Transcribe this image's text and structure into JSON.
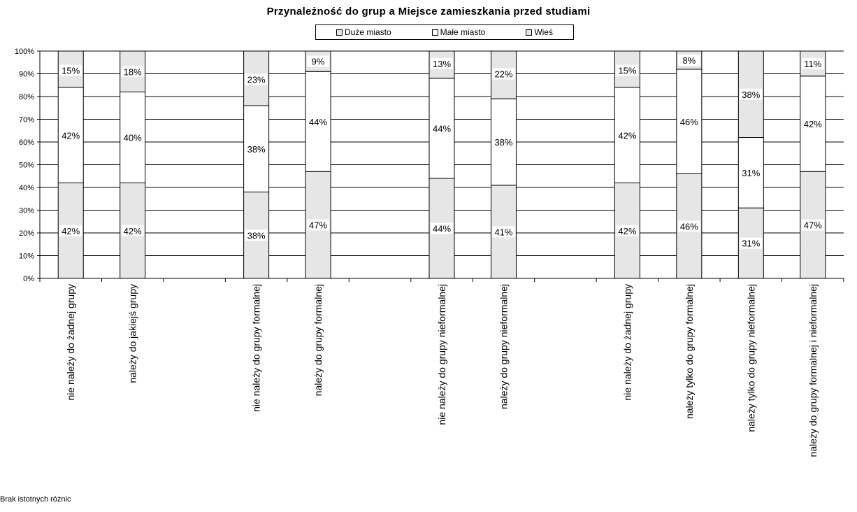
{
  "chart_data": {
    "type": "bar",
    "stacked": true,
    "percent": true,
    "title": "Przynależność do grup a Miejsce zamieszkania przed studiami",
    "legend_position": "top",
    "grid": true,
    "ylim": [
      0,
      100
    ],
    "yticks": [
      "0%",
      "10%",
      "20%",
      "30%",
      "40%",
      "50%",
      "60%",
      "70%",
      "80%",
      "90%",
      "100%"
    ],
    "slots": [
      0,
      1,
      3,
      4,
      6,
      7,
      9,
      10,
      11,
      12
    ],
    "slot_count": 13,
    "categories": [
      "nie należy do żadnej grupy",
      "należy do jakiejś grupy",
      "nie należy do grupy formalnej",
      "należy do grupy formalnej",
      "nie należy do grupy nieformalnej",
      "należy do grupy nieformalnej",
      "nie należy do żadnej grupy",
      "należy tylko do grupy formalnej",
      "należy tylko do grupy nieformalnej",
      "należy do grupy formalnej i nieformalnej"
    ],
    "series": [
      {
        "name": "Duże miasto",
        "color": "#e6e6e6",
        "values": [
          42,
          42,
          38,
          47,
          44,
          41,
          42,
          46,
          31,
          47
        ]
      },
      {
        "name": "Małe miasto",
        "color": "#ffffff",
        "values": [
          42,
          40,
          38,
          44,
          44,
          38,
          42,
          46,
          31,
          42
        ]
      },
      {
        "name": "Wieś",
        "color": "#e6e6e6",
        "values": [
          15,
          18,
          23,
          9,
          13,
          22,
          15,
          8,
          38,
          11
        ]
      }
    ]
  },
  "legend": {
    "items": [
      {
        "label": "Duże miasto",
        "color": "#e6e6e6"
      },
      {
        "label": "Małe miasto",
        "color": "#ffffff"
      },
      {
        "label": "Wieś",
        "color": "#e6e6e6"
      }
    ]
  },
  "note": "Brak istotnych różnic"
}
